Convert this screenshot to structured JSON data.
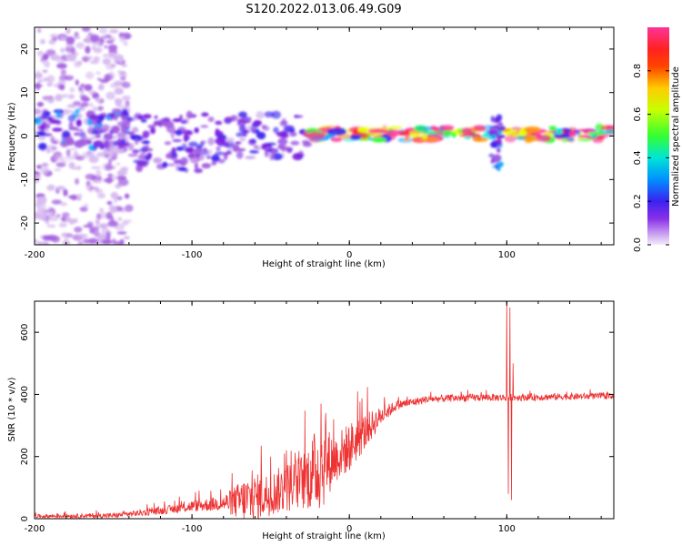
{
  "title": "S120.2022.013.06.49.G09",
  "colors": {
    "snr_line": "#ee3333",
    "axis": "#000000",
    "spectrogram_palette": [
      "#f4ecfb",
      "#d7b9f0",
      "#a35ee0",
      "#7a1fe0",
      "#3a22f0",
      "#00a8ff",
      "#00e5d6",
      "#33ff33",
      "#e8ff00",
      "#ff9900",
      "#ff2222",
      "#ff3399"
    ]
  },
  "chart_data": [
    {
      "type": "heatmap",
      "xlabel": "Height of straight line (km)",
      "ylabel": "Frequency (Hz)",
      "xlim": [
        -200,
        168
      ],
      "ylim": [
        -25,
        25
      ],
      "xticks": [
        -200,
        -100,
        0,
        100
      ],
      "yticks": [
        -20,
        -10,
        0,
        10,
        20
      ],
      "colorbar": {
        "label": "Normalized spectral amplitude",
        "range": [
          0,
          1
        ],
        "ticks": [
          "0.0",
          "0.2",
          "0.4",
          "0.6",
          "0.8"
        ]
      },
      "regions": [
        {
          "x_from": -200,
          "x_to": -140,
          "band_hz": [
            -25,
            25
          ],
          "amplitude": 0.15
        },
        {
          "x_from": -200,
          "x_to": -140,
          "band_hz": [
            -3,
            6
          ],
          "amplitude": 0.35
        },
        {
          "x_from": -140,
          "x_to": -80,
          "band_hz": [
            -8,
            5
          ],
          "amplitude": 0.3
        },
        {
          "x_from": -80,
          "x_to": -25,
          "band_hz": [
            -5,
            5
          ],
          "amplitude": 0.3
        },
        {
          "x_from": -25,
          "x_to": 168,
          "band_hz": [
            -1,
            2
          ],
          "amplitude": 0.9
        },
        {
          "x_from": 90,
          "x_to": 96,
          "band_hz": [
            -8,
            5
          ],
          "amplitude": 0.4
        }
      ]
    },
    {
      "type": "line",
      "xlabel": "Height of straight line (km)",
      "ylabel": "SNR (10 * v/v)",
      "xlim": [
        -200,
        168
      ],
      "ylim": [
        0,
        700
      ],
      "xticks": [
        -200,
        -100,
        0,
        100
      ],
      "yticks": [
        0,
        200,
        400,
        600
      ],
      "series": [
        {
          "envelope": [
            {
              "x": -200,
              "base": 8,
              "noise": 6
            },
            {
              "x": -150,
              "base": 10,
              "noise": 8
            },
            {
              "x": -120,
              "base": 25,
              "noise": 12
            },
            {
              "x": -100,
              "base": 40,
              "noise": 18
            },
            {
              "x": -80,
              "base": 50,
              "noise": 25
            },
            {
              "x": -65,
              "base": 60,
              "noise": 80
            },
            {
              "x": -50,
              "base": 80,
              "noise": 70
            },
            {
              "x": -30,
              "base": 120,
              "noise": 90
            },
            {
              "x": -18,
              "base": 170,
              "noise": 150
            },
            {
              "x": -10,
              "base": 190,
              "noise": 80
            },
            {
              "x": 0,
              "base": 230,
              "noise": 80
            },
            {
              "x": 10,
              "base": 280,
              "noise": 60
            },
            {
              "x": 20,
              "base": 330,
              "noise": 30
            },
            {
              "x": 30,
              "base": 365,
              "noise": 15
            },
            {
              "x": 50,
              "base": 385,
              "noise": 12
            },
            {
              "x": 80,
              "base": 390,
              "noise": 12
            },
            {
              "x": 100,
              "base": 390,
              "noise": 12
            },
            {
              "x": 168,
              "base": 395,
              "noise": 10
            }
          ],
          "spikes": [
            {
              "x": -56,
              "y": 235
            },
            {
              "x": -50,
              "y": 200
            },
            {
              "x": -40,
              "y": 220
            },
            {
              "x": -18,
              "y": 370
            },
            {
              "x": -15,
              "y": 340
            },
            {
              "x": -10,
              "y": 320
            },
            {
              "x": 100,
              "y": 700
            },
            {
              "x": 101,
              "y": 80
            },
            {
              "x": 102,
              "y": 680
            },
            {
              "x": 103,
              "y": 60
            },
            {
              "x": 104,
              "y": 500
            }
          ]
        }
      ]
    }
  ]
}
